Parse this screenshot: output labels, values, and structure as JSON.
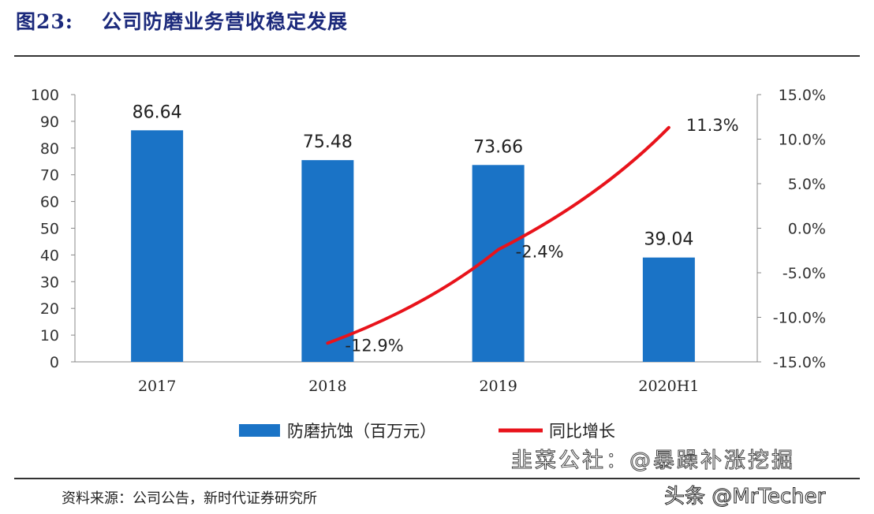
{
  "title": {
    "figure": "图23:",
    "text": "公司防磨业务营收稳定发展"
  },
  "source": "资料来源：公司公告，新时代证券研究所",
  "watermarks": [
    "韭菜公社：@暴躁补涨挖掘",
    "头条 @MrTecher"
  ],
  "chart_data": {
    "type": "bar+line",
    "categories": [
      "2017",
      "2018",
      "2019",
      "2020H1"
    ],
    "series": [
      {
        "name": "防磨抗蚀（百万元）",
        "type": "bar",
        "axis": "left",
        "color": "#1a73c6",
        "values": [
          86.64,
          75.48,
          73.66,
          39.04
        ],
        "labels": [
          "86.64",
          "75.48",
          "73.66",
          "39.04"
        ]
      },
      {
        "name": "同比增长",
        "type": "line",
        "axis": "right",
        "color": "#e8131b",
        "values": [
          null,
          -12.9,
          -2.4,
          11.3
        ],
        "labels": [
          "",
          "-12.9%",
          "-2.4%",
          "11.3%"
        ]
      }
    ],
    "y_left": {
      "range": [
        0,
        100
      ],
      "ticks": [
        "0",
        "10",
        "20",
        "30",
        "40",
        "50",
        "60",
        "70",
        "80",
        "90",
        "100"
      ]
    },
    "y_right": {
      "range": [
        -15,
        15
      ],
      "ticks": [
        "-15.0%",
        "-10.0%",
        "-5.0%",
        "0.0%",
        "5.0%",
        "10.0%",
        "15.0%"
      ]
    },
    "grid": false,
    "legend": "bottom"
  }
}
